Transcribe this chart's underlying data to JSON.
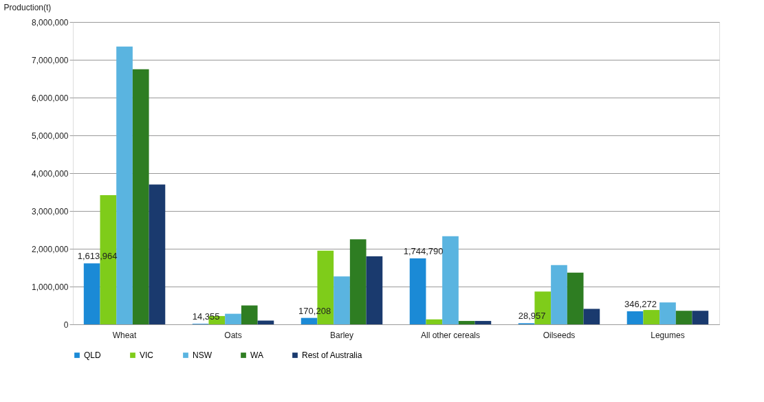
{
  "chart_data": {
    "type": "bar",
    "ylabel": "Production(t)",
    "categories": [
      "Wheat",
      "Oats",
      "Barley",
      "All other cereals",
      "Oilseeds",
      "Legumes"
    ],
    "series": [
      {
        "name": "QLD",
        "color": "#1b8ad6",
        "values": [
          1613964,
          14355,
          170208,
          1744790,
          28957,
          346272
        ],
        "value_labels": [
          "1,613,964",
          "14,355",
          "170,208",
          "1,744,790",
          "28,957",
          "346,272"
        ]
      },
      {
        "name": "VIC",
        "color": "#7fcc1a",
        "values": [
          3420000,
          220000,
          1950000,
          130000,
          870000,
          380000
        ]
      },
      {
        "name": "NSW",
        "color": "#5ab4e0",
        "values": [
          7350000,
          280000,
          1270000,
          2330000,
          1570000,
          580000
        ]
      },
      {
        "name": "WA",
        "color": "#2e7d22",
        "values": [
          6750000,
          500000,
          2250000,
          90000,
          1370000,
          360000
        ]
      },
      {
        "name": "Rest of Australia",
        "color": "#1a3a6e",
        "values": [
          3700000,
          100000,
          1800000,
          90000,
          410000,
          360000
        ]
      }
    ],
    "ylim": [
      0,
      8000000
    ],
    "yticks": [
      0,
      {
        "value": 1000000,
        "label": "1,000,000"
      },
      {
        "value": 2000000,
        "label": "2,000,000"
      },
      {
        "value": 3000000,
        "label": "3,000,000"
      },
      {
        "value": 4000000,
        "label": "4,000,000"
      },
      {
        "value": 5000000,
        "label": "5,000,000"
      },
      {
        "value": 6000000,
        "label": "6,000,000"
      },
      {
        "value": 7000000,
        "label": "7,000,000"
      },
      {
        "value": 8000000,
        "label": "8,000,000"
      }
    ],
    "grid": "y",
    "legend": "bottom"
  }
}
